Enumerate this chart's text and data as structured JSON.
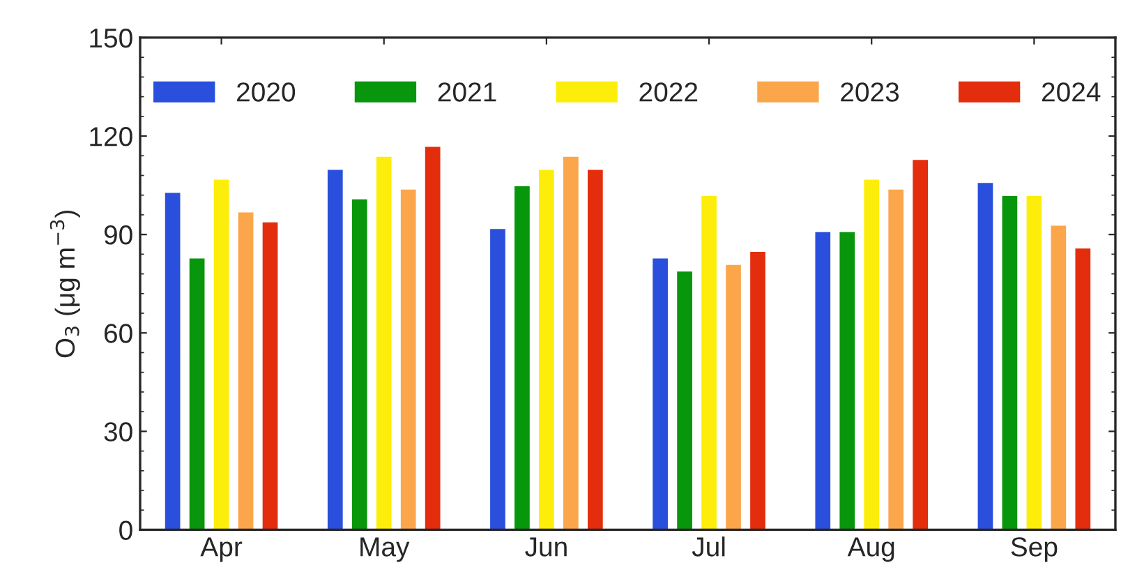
{
  "chart_data": {
    "type": "bar",
    "ylabel": "O$_{3}$ (μg m$^{−3}$)",
    "categories": [
      "Apr",
      "May",
      "Jun",
      "Jul",
      "Aug",
      "Sep"
    ],
    "series": [
      {
        "name": "2020",
        "color": "#2a4fdc",
        "values": [
          103,
          110,
          92,
          83,
          91,
          106
        ]
      },
      {
        "name": "2021",
        "color": "#08960c",
        "values": [
          83,
          101,
          105,
          79,
          91,
          102
        ]
      },
      {
        "name": "2022",
        "color": "#fcee0a",
        "values": [
          107,
          114,
          110,
          102,
          107,
          102
        ]
      },
      {
        "name": "2023",
        "color": "#fba64b",
        "values": [
          97,
          104,
          114,
          81,
          104,
          93
        ]
      },
      {
        "name": "2024",
        "color": "#e32d0c",
        "values": [
          94,
          117,
          110,
          85,
          113,
          86
        ]
      }
    ],
    "ylim": [
      0,
      150
    ],
    "yticks": [
      0,
      30,
      60,
      90,
      120,
      150
    ],
    "legend": "top",
    "grid": false
  }
}
